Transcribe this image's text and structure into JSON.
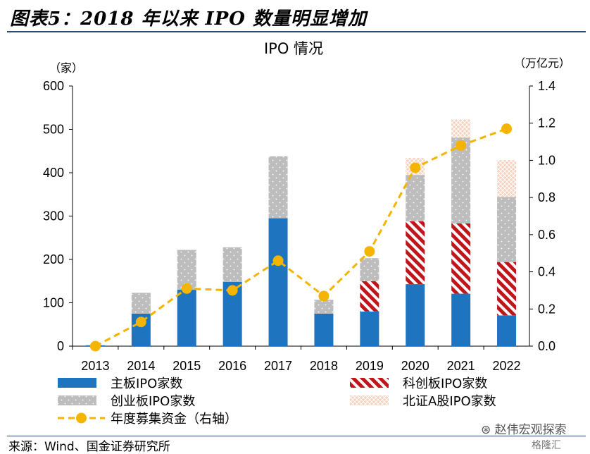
{
  "figure_title": "图表5：2018 年以来 IPO 数量明显增加",
  "source_note": "来源：Wind、国金证券研究所",
  "watermark": "赵伟宏观探索",
  "watermark_small": "格隆汇",
  "colors": {
    "main_board": "#1f74c0",
    "chinext": "#bdbdbd",
    "star": "#c0161b",
    "bse": "#f4c6ad",
    "line": "#f4b400"
  },
  "chart_data": {
    "type": "bar",
    "title": "IPO 情况",
    "left_unit": "（家）",
    "right_unit": "（万亿元）",
    "categories": [
      "2013",
      "2014",
      "2015",
      "2016",
      "2017",
      "2018",
      "2019",
      "2020",
      "2021",
      "2022"
    ],
    "ylim_left": [
      0,
      600
    ],
    "ylim_right": [
      0,
      1.4
    ],
    "yticks_left": [
      "0",
      "100",
      "200",
      "300",
      "400",
      "500",
      "600"
    ],
    "yticks_right": [
      "0.0",
      "0.2",
      "0.4",
      "0.6",
      "0.8",
      "1.0",
      "1.2",
      "1.4"
    ],
    "stacked": true,
    "series": [
      {
        "name": "主板IPO家数",
        "key": "main_board",
        "values": [
          2,
          75,
          130,
          148,
          295,
          75,
          80,
          143,
          121,
          71
        ]
      },
      {
        "name": "科创板IPO家数",
        "key": "star",
        "values": [
          0,
          0,
          0,
          0,
          0,
          0,
          70,
          145,
          162,
          123
        ]
      },
      {
        "name": "创业板IPO家数",
        "key": "chinext",
        "values": [
          0,
          48,
          92,
          80,
          143,
          32,
          53,
          107,
          198,
          150
        ]
      },
      {
        "name": "北证A股IPO家数",
        "key": "bse",
        "values": [
          0,
          0,
          0,
          0,
          0,
          0,
          0,
          39,
          42,
          85
        ]
      }
    ],
    "line_series": {
      "name": "年度募集资金（右轴）",
      "axis": "right",
      "values": [
        0.0,
        0.13,
        0.31,
        0.3,
        0.46,
        0.27,
        0.51,
        0.96,
        1.08,
        1.17
      ]
    },
    "legend_items": [
      {
        "label": "主板IPO家数",
        "key": "main_board"
      },
      {
        "label": "科创板IPO家数",
        "key": "star"
      },
      {
        "label": "创业板IPO家数",
        "key": "chinext"
      },
      {
        "label": "北证A股IPO家数",
        "key": "bse"
      },
      {
        "label": "年度募集资金（右轴）",
        "key": "line"
      }
    ]
  }
}
